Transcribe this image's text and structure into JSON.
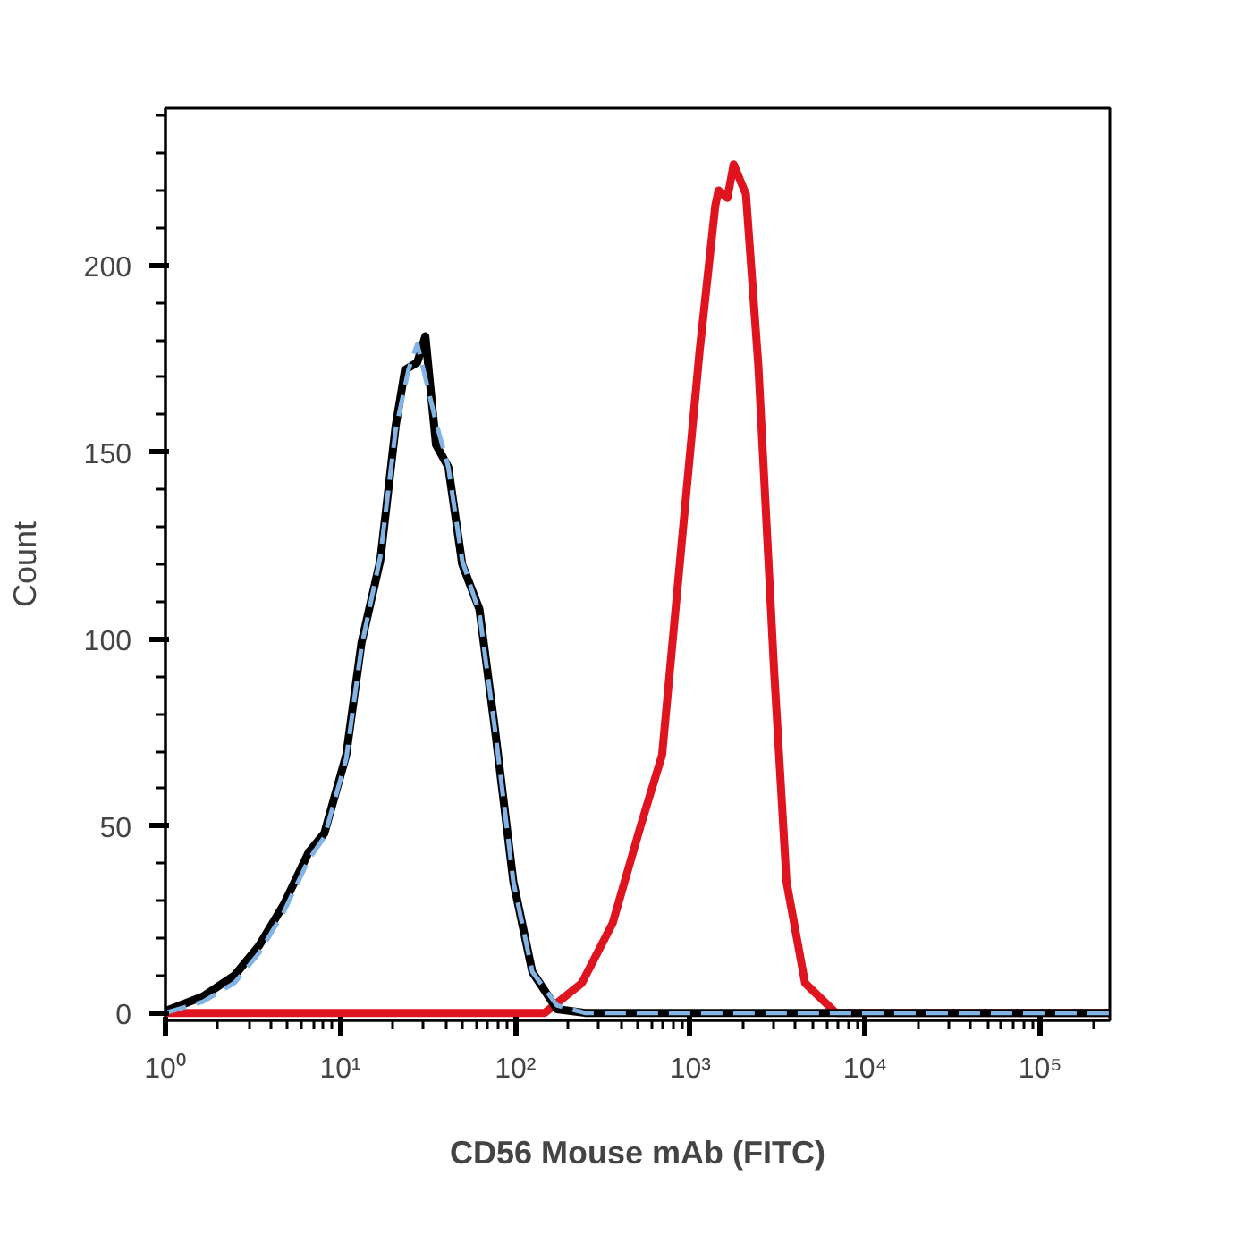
{
  "chart_data": {
    "type": "line",
    "xlabel": "CD56 Mouse mAb (FITC)",
    "ylabel": "Count",
    "log": "x",
    "grid": false,
    "marker": "none",
    "xlim": [
      1,
      250000
    ],
    "ylim": [
      -2,
      242
    ],
    "xticks": [
      {
        "value": 1,
        "label": "10⁰"
      },
      {
        "value": 10,
        "label": "10¹"
      },
      {
        "value": 100,
        "label": "10²"
      },
      {
        "value": 1000,
        "label": "10³"
      },
      {
        "value": 10000,
        "label": "10⁴"
      },
      {
        "value": 100000,
        "label": "10⁵"
      }
    ],
    "yticks": [
      0,
      50,
      100,
      150,
      200
    ],
    "series": [
      {
        "color": "#e0141e",
        "line_style": "solid",
        "x": [
          1,
          10,
          100,
          147,
          240,
          360,
          520,
          690,
          890,
          1130,
          1390,
          1450,
          1630,
          1770,
          2080,
          2450,
          3010,
          3550,
          4530,
          6800,
          250000
        ],
        "values": [
          0,
          0,
          0,
          0,
          8,
          24,
          50,
          69,
          125,
          177,
          216,
          220,
          218,
          227,
          219,
          173,
          92,
          35,
          8,
          0,
          0
        ]
      },
      {
        "color": "#000000",
        "line_style": "solid",
        "x": [
          1,
          1.64,
          2.48,
          3.43,
          4.75,
          6.59,
          8.09,
          10.8,
          13.2,
          16.9,
          20.7,
          23.4,
          27.5,
          30.6,
          35.2,
          41.4,
          49.7,
          62.3,
          76.4,
          97.5,
          125,
          173,
          250,
          250000
        ],
        "values": [
          0.5,
          4.4,
          10,
          18,
          29,
          43,
          48,
          69,
          99,
          121,
          157,
          172,
          174,
          181,
          152,
          146,
          120,
          108,
          76,
          35,
          11,
          1,
          0,
          0
        ]
      },
      {
        "color": "#82b4e6",
        "line_style": "dashed",
        "x": [
          1,
          1.64,
          2.48,
          3.43,
          4.75,
          6.59,
          8.09,
          10.8,
          13.2,
          16.9,
          20.7,
          24.5,
          27.5,
          35.2,
          41.4,
          49.7,
          62.3,
          76.4,
          97.5,
          125,
          173,
          250,
          3000,
          250000
        ],
        "values": [
          0,
          3,
          8,
          16,
          27,
          41,
          47,
          68,
          98,
          122,
          156,
          172,
          179,
          158,
          146,
          121,
          107,
          76,
          35,
          11,
          2,
          0,
          0,
          0
        ]
      }
    ]
  }
}
